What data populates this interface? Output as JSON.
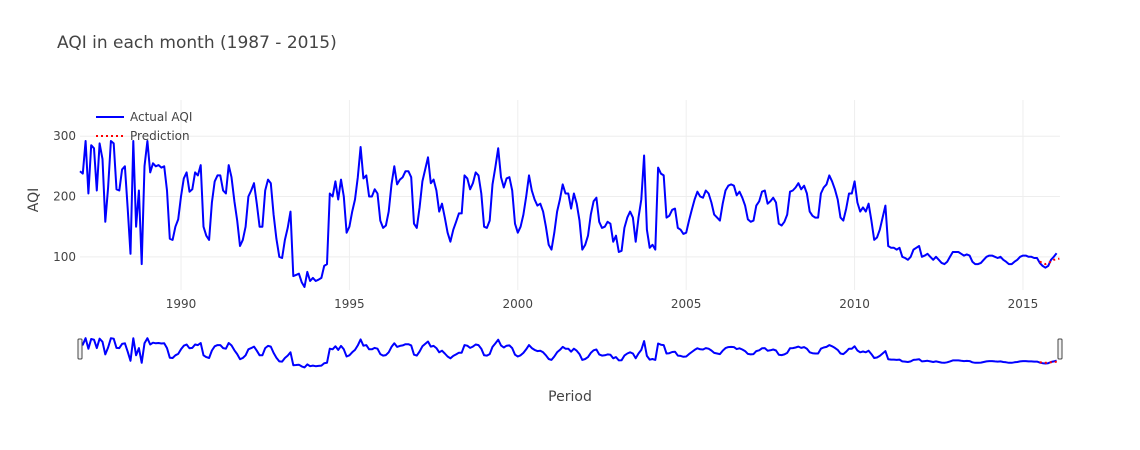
{
  "chart_data": {
    "type": "line",
    "title": "AQI in each month (1987 - 2015)",
    "xlabel": "Period",
    "ylabel": "AQI",
    "xlim": [
      1987.0,
      2016.1
    ],
    "ylim": [
      45,
      360
    ],
    "x_ticks": [
      "1990",
      "1995",
      "2000",
      "2005",
      "2010",
      "2015"
    ],
    "y_ticks": [
      "100",
      "200",
      "300"
    ],
    "grid": true,
    "legend_position": "top-left",
    "has_range_slider": true,
    "series": [
      {
        "name": "Actual AQI",
        "color": "#0000ff",
        "dash": "solid",
        "start": [
          1987,
          1
        ],
        "values": [
          242,
          238,
          292,
          205,
          285,
          280,
          210,
          288,
          262,
          158,
          215,
          292,
          288,
          212,
          210,
          245,
          250,
          180,
          105,
          292,
          150,
          210,
          88,
          250,
          292,
          240,
          255,
          250,
          252,
          248,
          250,
          210,
          130,
          128,
          150,
          162,
          200,
          230,
          240,
          208,
          212,
          240,
          235,
          252,
          150,
          135,
          128,
          190,
          225,
          235,
          235,
          210,
          205,
          252,
          232,
          192,
          160,
          118,
          128,
          150,
          200,
          210,
          222,
          188,
          150,
          150,
          210,
          228,
          222,
          170,
          130,
          100,
          98,
          128,
          148,
          175,
          68,
          70,
          72,
          58,
          50,
          75,
          60,
          65,
          60,
          62,
          65,
          85,
          88,
          205,
          200,
          225,
          195,
          228,
          200,
          140,
          150,
          175,
          195,
          232,
          282,
          230,
          235,
          200,
          200,
          212,
          205,
          160,
          148,
          152,
          175,
          220,
          250,
          220,
          228,
          232,
          242,
          242,
          232,
          155,
          148,
          182,
          225,
          245,
          265,
          222,
          228,
          210,
          175,
          188,
          165,
          140,
          125,
          145,
          158,
          172,
          172,
          235,
          230,
          212,
          222,
          240,
          235,
          205,
          150,
          148,
          160,
          220,
          248,
          280,
          232,
          215,
          230,
          232,
          210,
          155,
          140,
          150,
          170,
          200,
          235,
          210,
          195,
          185,
          188,
          175,
          150,
          120,
          112,
          140,
          175,
          195,
          220,
          205,
          205,
          180,
          205,
          188,
          160,
          112,
          120,
          135,
          170,
          192,
          198,
          158,
          148,
          150,
          158,
          155,
          125,
          135,
          108,
          110,
          148,
          165,
          175,
          165,
          125,
          165,
          195,
          268,
          145,
          115,
          120,
          112,
          248,
          238,
          235,
          165,
          168,
          178,
          180,
          148,
          145,
          138,
          140,
          160,
          178,
          195,
          208,
          200,
          198,
          210,
          205,
          190,
          170,
          165,
          160,
          188,
          210,
          218,
          220,
          218,
          202,
          208,
          198,
          185,
          162,
          158,
          160,
          185,
          192,
          208,
          210,
          188,
          192,
          198,
          190,
          155,
          152,
          158,
          170,
          208,
          210,
          215,
          222,
          212,
          218,
          205,
          175,
          168,
          165,
          165,
          205,
          215,
          220,
          235,
          225,
          212,
          195,
          165,
          160,
          180,
          205,
          205,
          225,
          190,
          175,
          182,
          175,
          188,
          160,
          128,
          132,
          145,
          165,
          185,
          118,
          115,
          115,
          112,
          115,
          100,
          98,
          95,
          100,
          112,
          115,
          118,
          100,
          102,
          105,
          100,
          95,
          100,
          95,
          90,
          88,
          92,
          100,
          108,
          108,
          108,
          105,
          102,
          104,
          102,
          92,
          88,
          88,
          90,
          95,
          100,
          102,
          102,
          100,
          98,
          100,
          95,
          92,
          88,
          88,
          92,
          95,
          100,
          102,
          102,
          100,
          100,
          98,
          98,
          90,
          85,
          82,
          85,
          95,
          100,
          106
        ]
      },
      {
        "name": "Prediction",
        "color": "#ff0000",
        "dash": "dot",
        "start": [
          2015,
          7
        ],
        "values": [
          92,
          90,
          88,
          90,
          92,
          95,
          96,
          97
        ]
      }
    ]
  }
}
